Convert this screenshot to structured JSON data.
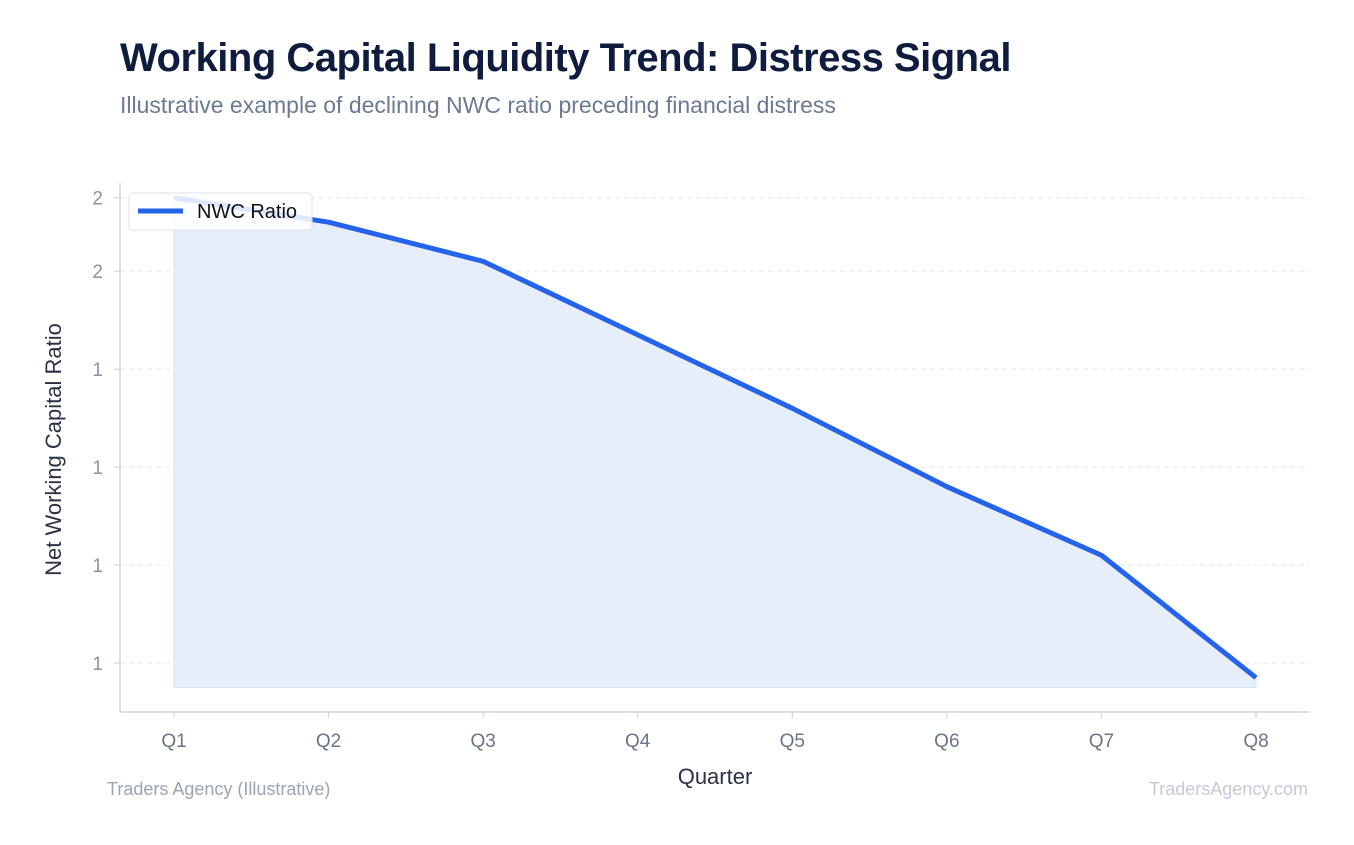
{
  "header": {
    "title": "Working Capital Liquidity Trend: Distress Signal",
    "subtitle": "Illustrative example of declining NWC ratio preceding financial distress"
  },
  "footer": {
    "source": "Traders Agency (Illustrative)",
    "watermark": "TradersAgency.com"
  },
  "chart_data": {
    "type": "area",
    "title": "Working Capital Liquidity Trend: Distress Signal",
    "subtitle": "Illustrative example of declining NWC ratio preceding financial distress",
    "xlabel": "Quarter",
    "ylabel": "Net Working Capital Ratio",
    "categories": [
      "Q1",
      "Q2",
      "Q3",
      "Q4",
      "Q5",
      "Q6",
      "Q7",
      "Q8"
    ],
    "series": [
      {
        "name": "NWC Ratio",
        "values": [
          1.85,
          1.8,
          1.72,
          1.57,
          1.42,
          1.26,
          1.12,
          0.87
        ],
        "color": "#2563eb"
      }
    ],
    "area_fill": "#e6eefa",
    "area_baseline": 0.85,
    "ylim": [
      0.8,
      1.88
    ],
    "yticks": [
      0.9,
      1.1,
      1.3,
      1.5,
      1.7,
      1.85
    ],
    "ytick_labels": [
      "1",
      "1",
      "1",
      "1",
      "2",
      "2"
    ],
    "grid": true,
    "legend": "top-left"
  }
}
